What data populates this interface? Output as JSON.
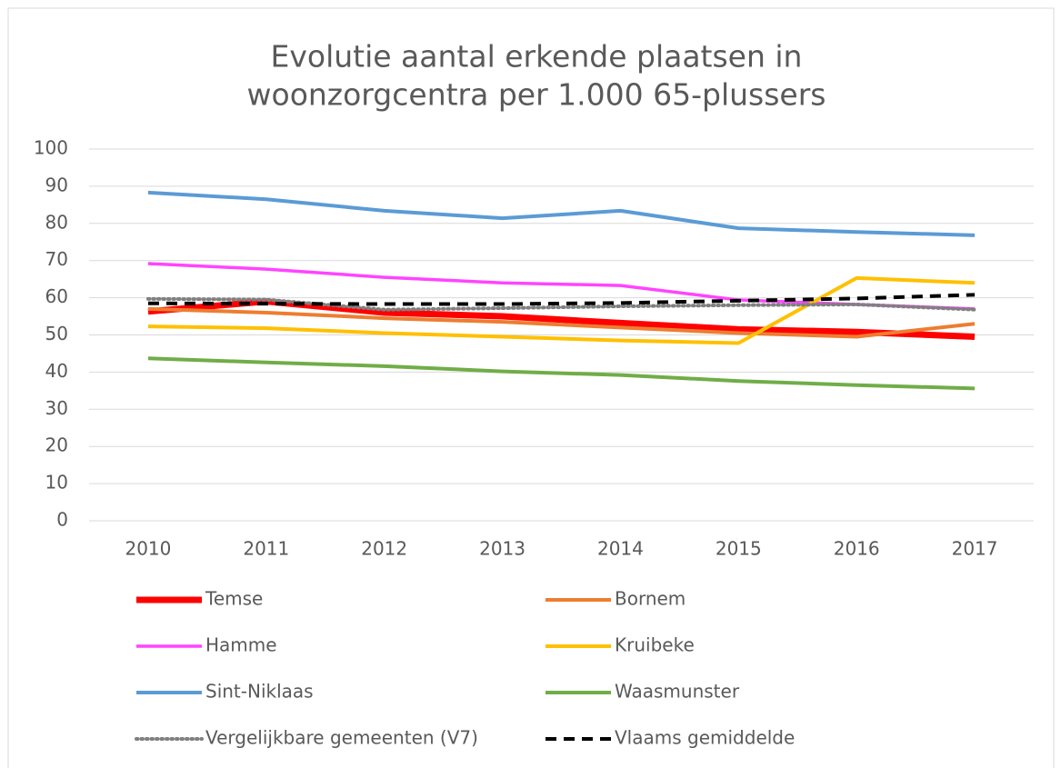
{
  "chart_data": {
    "type": "line",
    "title": [
      "Evolutie aantal erkende plaatsen in",
      "woonzorgcentra per 1.000 65-plussers"
    ],
    "categories": [
      "2010",
      "2011",
      "2012",
      "2013",
      "2014",
      "2015",
      "2016",
      "2017"
    ],
    "ylim": [
      0,
      100
    ],
    "yticks": [
      0,
      10,
      20,
      30,
      40,
      50,
      60,
      70,
      80,
      90,
      100
    ],
    "grid": true,
    "legend": "bottom",
    "series": [
      {
        "name": "Temse",
        "color": "#ff0000",
        "line_width": 7,
        "line_style": "solid",
        "values": [
          56.3,
          59,
          56,
          55,
          53.2,
          51.5,
          50.8,
          49.5
        ]
      },
      {
        "name": "Bornem",
        "color": "#ed7d31",
        "line_width": 4,
        "line_style": "solid",
        "values": [
          57,
          56,
          54.5,
          53.5,
          52,
          50.5,
          49.5,
          53
        ]
      },
      {
        "name": "Hamme",
        "color": "#ff44ff",
        "line_width": 3.5,
        "line_style": "solid",
        "values": [
          69.2,
          67.7,
          65.5,
          64,
          63.3,
          59.4,
          58.2,
          57
        ]
      },
      {
        "name": "Kruibeke",
        "color": "#ffc000",
        "line_width": 4,
        "line_style": "solid",
        "values": [
          52.3,
          51.8,
          50.5,
          49.5,
          48.5,
          47.8,
          65.3,
          64
        ]
      },
      {
        "name": "Sint-Niklaas",
        "color": "#5b9bd5",
        "line_width": 4,
        "line_style": "solid",
        "values": [
          88.3,
          86.5,
          83.4,
          81.4,
          83.4,
          78.7,
          77.7,
          76.8
        ]
      },
      {
        "name": "Waasmunster",
        "color": "#70ad47",
        "line_width": 4,
        "line_style": "solid",
        "values": [
          43.7,
          42.6,
          41.6,
          40.2,
          39.2,
          37.6,
          36.5,
          35.6
        ]
      },
      {
        "name": "Vergelijkbare gemeenten (V7)",
        "color": "#808080",
        "line_width": 4,
        "line_style": "dotted",
        "values": [
          59.7,
          59.5,
          56.8,
          57.2,
          57.7,
          58,
          58.2,
          56.8
        ]
      },
      {
        "name": "Vlaams gemiddelde",
        "color": "#000000",
        "line_width": 4,
        "line_style": "dashed",
        "values": [
          58.5,
          58.4,
          58.3,
          58.3,
          58.6,
          59.2,
          59.8,
          60.8
        ]
      }
    ]
  }
}
